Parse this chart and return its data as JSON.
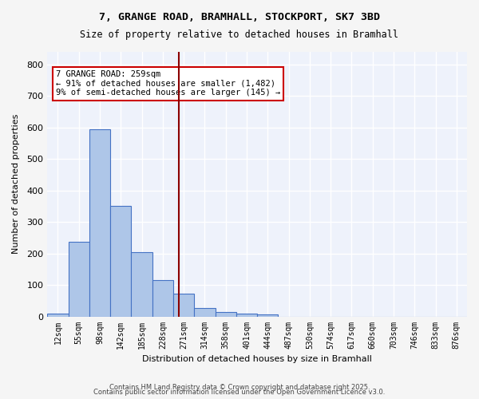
{
  "title_line1": "7, GRANGE ROAD, BRAMHALL, STOCKPORT, SK7 3BD",
  "title_line2": "Size of property relative to detached houses in Bramhall",
  "xlabel": "Distribution of detached houses by size in Bramhall",
  "ylabel": "Number of detached properties",
  "bar_values": [
    8,
    238,
    595,
    352,
    205,
    115,
    72,
    27,
    13,
    8,
    7,
    0,
    0,
    0,
    0,
    0,
    0,
    0,
    0
  ],
  "bar_labels": [
    "12sqm",
    "55sqm",
    "98sqm",
    "142sqm",
    "185sqm",
    "228sqm",
    "271sqm",
    "314sqm",
    "358sqm",
    "401sqm",
    "444sqm",
    "487sqm",
    "530sqm",
    "574sqm",
    "617sqm",
    "660sqm",
    "703sqm",
    "746sqm",
    "833sqm",
    "876sqm"
  ],
  "bar_color": "#aec6e8",
  "bar_edge_color": "#4472c4",
  "background_color": "#eef2fb",
  "grid_color": "#ffffff",
  "vline_x": 5.77,
  "vline_color": "#8b0000",
  "annotation_text": "7 GRANGE ROAD: 259sqm\n← 91% of detached houses are smaller (1,482)\n9% of semi-detached houses are larger (145) →",
  "annotation_box_color": "#ffffff",
  "annotation_box_edge_color": "#cc0000",
  "ylim": [
    0,
    840
  ],
  "yticks": [
    0,
    100,
    200,
    300,
    400,
    500,
    600,
    700,
    800
  ],
  "footer_line1": "Contains HM Land Registry data © Crown copyright and database right 2025.",
  "footer_line2": "Contains public sector information licensed under the Open Government Licence v3.0."
}
